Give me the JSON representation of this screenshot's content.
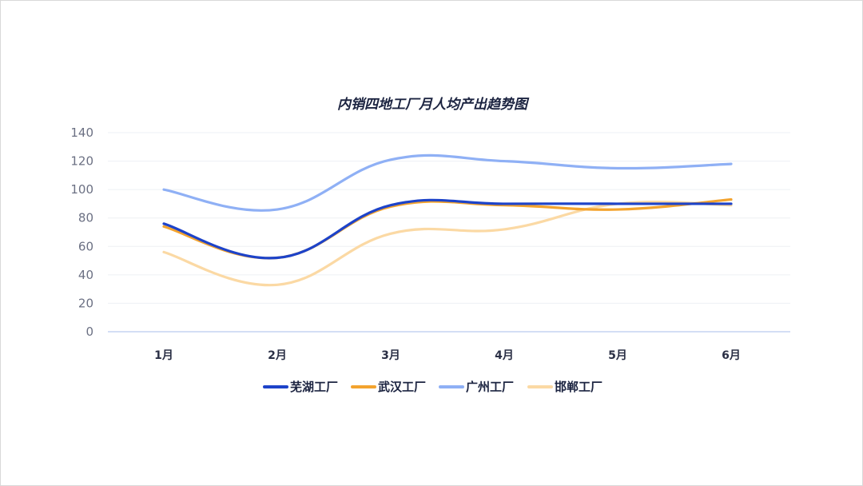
{
  "chart_data": {
    "type": "line",
    "title": "内销四地工厂月人均产出趋势图",
    "xlabel": "",
    "ylabel": "",
    "categories": [
      "1月",
      "2月",
      "3月",
      "4月",
      "5月",
      "6月"
    ],
    "ylim": [
      0,
      140
    ],
    "yticks": [
      0,
      20,
      40,
      60,
      80,
      100,
      120,
      140
    ],
    "grid": true,
    "smooth": true,
    "legend_position": "bottom",
    "series": [
      {
        "name": "芜湖工厂",
        "color": "#1d43c9",
        "values": [
          76,
          52,
          89,
          90,
          90,
          90
        ]
      },
      {
        "name": "武汉工厂",
        "color": "#f3a32e",
        "values": [
          74,
          52,
          88,
          89,
          86,
          93
        ]
      },
      {
        "name": "广州工厂",
        "color": "#8fb0f5",
        "values": [
          100,
          86,
          121,
          120,
          115,
          118
        ]
      },
      {
        "name": "邯郸工厂",
        "color": "#fbd9a4",
        "values": [
          56,
          33,
          69,
          72,
          90,
          89
        ]
      }
    ]
  }
}
